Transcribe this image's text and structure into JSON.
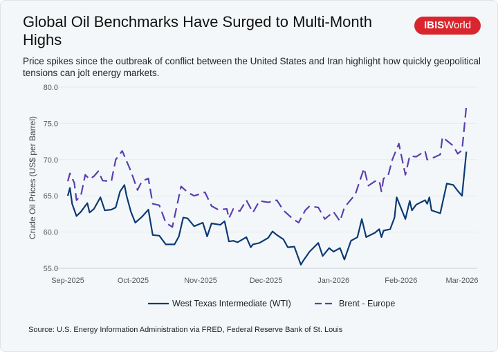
{
  "header": {
    "title": "Global Oil Benchmarks Have Surged to Multi-Month Highs",
    "subtitle": "Price spikes since the outbreak of conflict between the United States and Iran highlight how quickly geopolitical tensions can jolt energy markets.",
    "logo_text": "IBISWorld",
    "logo_color": "#d9262e"
  },
  "source": "Source: U.S. Energy Information Administration via FRED, Federal Reserve Bank of St. Louis",
  "chart_data": {
    "type": "line",
    "title": "Global Oil Benchmarks Have Surged to Multi-Month Highs",
    "xlabel": "",
    "ylabel": "Crude Oil Prices (US$ per Barrel)",
    "ylim": [
      55,
      80
    ],
    "yticks": [
      "55.0",
      "60.0",
      "65.0",
      "70.0",
      "75.0",
      "80.0"
    ],
    "xticks": [
      {
        "label": "Sep-2025",
        "date": "2025-09-01"
      },
      {
        "label": "Oct-2025",
        "date": "2025-10-01"
      },
      {
        "label": "Nov-2025",
        "date": "2025-11-01"
      },
      {
        "label": "Dec-2025",
        "date": "2025-12-01"
      },
      {
        "label": "Jan-2026",
        "date": "2026-01-01"
      },
      {
        "label": "Feb-2026",
        "date": "2026-02-01"
      },
      {
        "label": "Mar-2026",
        "date": "2026-03-01"
      }
    ],
    "grid": true,
    "legend_position": "bottom",
    "series": [
      {
        "name": "West Texas Intermediate (WTI)",
        "color": "#0b3a75",
        "style": "solid",
        "points": [
          [
            "2025-09-01",
            65.0
          ],
          [
            "2025-09-02",
            66.1
          ],
          [
            "2025-09-03",
            63.9
          ],
          [
            "2025-09-05",
            62.2
          ],
          [
            "2025-09-07",
            62.8
          ],
          [
            "2025-09-10",
            64.0
          ],
          [
            "2025-09-11",
            62.7
          ],
          [
            "2025-09-13",
            63.2
          ],
          [
            "2025-09-16",
            64.8
          ],
          [
            "2025-09-18",
            63.0
          ],
          [
            "2025-09-21",
            63.1
          ],
          [
            "2025-09-23",
            63.4
          ],
          [
            "2025-09-25",
            65.6
          ],
          [
            "2025-09-27",
            66.5
          ],
          [
            "2025-09-28",
            65.0
          ],
          [
            "2025-09-30",
            62.8
          ],
          [
            "2025-10-02",
            61.3
          ],
          [
            "2025-10-05",
            62.1
          ],
          [
            "2025-10-08",
            63.1
          ],
          [
            "2025-10-10",
            59.6
          ],
          [
            "2025-10-13",
            59.5
          ],
          [
            "2025-10-16",
            58.3
          ],
          [
            "2025-10-20",
            58.3
          ],
          [
            "2025-10-22",
            59.4
          ],
          [
            "2025-10-24",
            62.0
          ],
          [
            "2025-10-26",
            61.9
          ],
          [
            "2025-10-29",
            60.8
          ],
          [
            "2025-11-02",
            61.3
          ],
          [
            "2025-11-04",
            59.4
          ],
          [
            "2025-11-06",
            61.2
          ],
          [
            "2025-11-10",
            61.0
          ],
          [
            "2025-11-12",
            61.5
          ],
          [
            "2025-11-14",
            58.7
          ],
          [
            "2025-11-16",
            58.8
          ],
          [
            "2025-11-18",
            58.6
          ],
          [
            "2025-11-22",
            59.3
          ],
          [
            "2025-11-24",
            57.9
          ],
          [
            "2025-11-25",
            58.3
          ],
          [
            "2025-11-28",
            58.5
          ],
          [
            "2025-12-02",
            59.2
          ],
          [
            "2025-12-04",
            60.1
          ],
          [
            "2025-12-06",
            59.6
          ],
          [
            "2025-12-09",
            59.0
          ],
          [
            "2025-12-11",
            57.9
          ],
          [
            "2025-12-14",
            58.0
          ],
          [
            "2025-12-17",
            55.5
          ],
          [
            "2025-12-18",
            56.0
          ],
          [
            "2025-12-21",
            57.3
          ],
          [
            "2025-12-25",
            58.5
          ],
          [
            "2025-12-27",
            56.7
          ],
          [
            "2025-12-30",
            57.8
          ],
          [
            "2026-01-01",
            57.3
          ],
          [
            "2026-01-04",
            57.8
          ],
          [
            "2026-01-06",
            56.2
          ],
          [
            "2026-01-09",
            58.8
          ],
          [
            "2026-01-12",
            59.3
          ],
          [
            "2026-01-14",
            61.8
          ],
          [
            "2026-01-16",
            59.3
          ],
          [
            "2026-01-20",
            59.9
          ],
          [
            "2026-01-22",
            60.4
          ],
          [
            "2026-01-23",
            59.3
          ],
          [
            "2026-01-24",
            60.2
          ],
          [
            "2026-01-27",
            60.4
          ],
          [
            "2026-01-29",
            62.0
          ],
          [
            "2026-01-30",
            64.8
          ],
          [
            "2026-02-03",
            61.8
          ],
          [
            "2026-02-05",
            64.3
          ],
          [
            "2026-02-06",
            63.0
          ],
          [
            "2026-02-08",
            63.8
          ],
          [
            "2026-02-12",
            64.4
          ],
          [
            "2026-02-13",
            63.9
          ],
          [
            "2026-02-14",
            64.8
          ],
          [
            "2026-02-15",
            63.0
          ],
          [
            "2026-02-19",
            62.6
          ],
          [
            "2026-02-22",
            66.7
          ],
          [
            "2026-02-25",
            66.5
          ],
          [
            "2026-02-27",
            65.7
          ],
          [
            "2026-03-01",
            65.0
          ],
          [
            "2026-03-03",
            71.1
          ]
        ]
      },
      {
        "name": "Brent - Europe",
        "color": "#5b3fae",
        "style": "dashed",
        "points": [
          [
            "2025-09-01",
            67.0
          ],
          [
            "2025-09-02",
            68.1
          ],
          [
            "2025-09-04",
            66.8
          ],
          [
            "2025-09-05",
            64.4
          ],
          [
            "2025-09-07",
            65.0
          ],
          [
            "2025-09-09",
            67.9
          ],
          [
            "2025-09-11",
            67.3
          ],
          [
            "2025-09-13",
            67.7
          ],
          [
            "2025-09-15",
            68.4
          ],
          [
            "2025-09-17",
            67.1
          ],
          [
            "2025-09-21",
            67.0
          ],
          [
            "2025-09-23",
            70.0
          ],
          [
            "2025-09-26",
            71.2
          ],
          [
            "2025-09-30",
            68.4
          ],
          [
            "2025-10-03",
            65.8
          ],
          [
            "2025-10-05",
            67.0
          ],
          [
            "2025-10-08",
            67.4
          ],
          [
            "2025-10-10",
            63.9
          ],
          [
            "2025-10-13",
            63.7
          ],
          [
            "2025-10-16",
            61.3
          ],
          [
            "2025-10-19",
            60.7
          ],
          [
            "2025-10-23",
            66.3
          ],
          [
            "2025-10-26",
            65.5
          ],
          [
            "2025-10-29",
            65.0
          ],
          [
            "2025-11-03",
            65.5
          ],
          [
            "2025-11-06",
            63.6
          ],
          [
            "2025-11-09",
            63.1
          ],
          [
            "2025-11-13",
            63.2
          ],
          [
            "2025-11-14",
            61.9
          ],
          [
            "2025-11-16",
            63.2
          ],
          [
            "2025-11-19",
            62.9
          ],
          [
            "2025-11-22",
            64.4
          ],
          [
            "2025-11-25",
            62.7
          ],
          [
            "2025-11-28",
            64.3
          ],
          [
            "2025-12-02",
            64.1
          ],
          [
            "2025-12-06",
            64.4
          ],
          [
            "2025-12-09",
            63.0
          ],
          [
            "2025-12-13",
            61.9
          ],
          [
            "2025-12-16",
            61.3
          ],
          [
            "2025-12-19",
            63.0
          ],
          [
            "2025-12-21",
            63.6
          ],
          [
            "2025-12-25",
            63.4
          ],
          [
            "2025-12-28",
            61.8
          ],
          [
            "2026-01-01",
            62.8
          ],
          [
            "2026-01-04",
            61.5
          ],
          [
            "2026-01-06",
            63.4
          ],
          [
            "2026-01-11",
            65.2
          ],
          [
            "2026-01-15",
            68.8
          ],
          [
            "2026-01-17",
            66.4
          ],
          [
            "2026-01-20",
            67.0
          ],
          [
            "2026-01-22",
            67.1
          ],
          [
            "2026-01-23",
            65.6
          ],
          [
            "2026-01-24",
            67.4
          ],
          [
            "2026-01-26",
            67.7
          ],
          [
            "2026-01-28",
            70.0
          ],
          [
            "2026-01-31",
            72.2
          ],
          [
            "2026-02-03",
            67.9
          ],
          [
            "2026-02-05",
            70.5
          ],
          [
            "2026-02-08",
            70.4
          ],
          [
            "2026-02-12",
            71.2
          ],
          [
            "2026-02-13",
            70.0
          ],
          [
            "2026-02-16",
            70.3
          ],
          [
            "2026-02-19",
            70.7
          ],
          [
            "2026-02-20",
            73.1
          ],
          [
            "2026-02-25",
            71.9
          ],
          [
            "2026-02-27",
            70.8
          ],
          [
            "2026-03-01",
            71.3
          ],
          [
            "2026-03-03",
            77.4
          ]
        ]
      }
    ]
  }
}
